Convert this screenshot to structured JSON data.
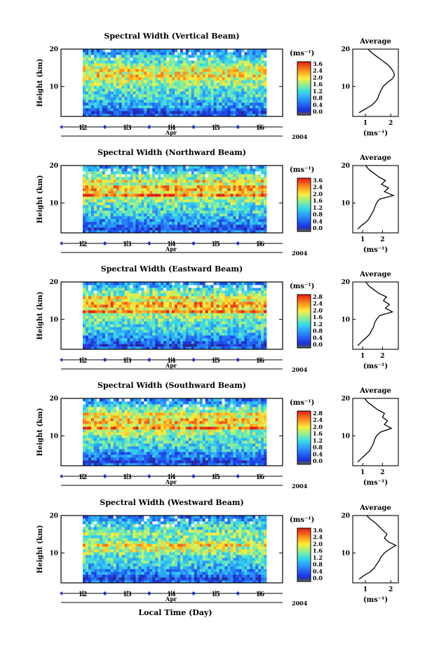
{
  "figure": {
    "xlabel": "Local Time (Day)",
    "month_label": "Apr",
    "year_label": "2004",
    "colorbar_unit": "(ms⁻¹)",
    "avg_title": "Average",
    "avg_unit": "(ms⁻¹)",
    "ylabel": "Height (km)"
  },
  "chart_data": [
    {
      "type": "heatmap",
      "title": "Spectral Width (Vertical Beam)",
      "ylabel": "Height (km)",
      "x_ticks": [
        "12",
        "13",
        "14",
        "15",
        "16"
      ],
      "y_ticks": [
        "20",
        "10"
      ],
      "ylim": [
        2,
        20
      ],
      "x_range": [
        11.9,
        16.2
      ],
      "colorbar_ticks": [
        "3.6",
        "2.4",
        "2.0",
        "1.6",
        "1.2",
        "0.8",
        "0.4",
        "0.0"
      ],
      "average": {
        "title": "Average",
        "x_ticks": [
          "1",
          "2"
        ],
        "xlim": [
          0.5,
          2.3
        ],
        "profile": [
          [
            3.0,
            0.75
          ],
          [
            4.0,
            1.0
          ],
          [
            5.0,
            1.25
          ],
          [
            6.0,
            1.4
          ],
          [
            7.0,
            1.5
          ],
          [
            8.0,
            1.55
          ],
          [
            9.0,
            1.62
          ],
          [
            10.0,
            1.7
          ],
          [
            11.0,
            1.85
          ],
          [
            12.0,
            2.05
          ],
          [
            13.0,
            2.15
          ],
          [
            14.0,
            2.1
          ],
          [
            15.0,
            2.0
          ],
          [
            16.0,
            1.85
          ],
          [
            17.0,
            1.65
          ],
          [
            18.0,
            1.45
          ],
          [
            19.0,
            1.25
          ],
          [
            20.0,
            1.1
          ]
        ]
      }
    },
    {
      "type": "heatmap",
      "title": "Spectral Width (Northward Beam)",
      "ylabel": "Height (km)",
      "x_ticks": [
        "12",
        "13",
        "14",
        "15",
        "16"
      ],
      "y_ticks": [
        "20",
        "10"
      ],
      "ylim": [
        2,
        20
      ],
      "x_range": [
        11.9,
        16.2
      ],
      "colorbar_ticks": [
        "3.6",
        "2.4",
        "2.0",
        "1.6",
        "1.2",
        "0.8",
        "0.4",
        "0.0"
      ],
      "average": {
        "title": "Average",
        "x_ticks": [
          "1",
          "2"
        ],
        "xlim": [
          0.5,
          2.8
        ],
        "profile": [
          [
            3.0,
            0.75
          ],
          [
            4.0,
            0.95
          ],
          [
            5.0,
            1.2
          ],
          [
            6.0,
            1.35
          ],
          [
            7.0,
            1.45
          ],
          [
            8.0,
            1.55
          ],
          [
            9.0,
            1.62
          ],
          [
            10.0,
            1.7
          ],
          [
            11.0,
            1.85
          ],
          [
            12.0,
            2.55
          ],
          [
            13.0,
            2.1
          ],
          [
            14.0,
            2.3
          ],
          [
            15.0,
            1.95
          ],
          [
            16.0,
            2.15
          ],
          [
            17.0,
            1.8
          ],
          [
            18.0,
            1.55
          ],
          [
            19.0,
            1.3
          ],
          [
            20.0,
            1.15
          ]
        ]
      }
    },
    {
      "type": "heatmap",
      "title": "Spectral Width (Eastward Beam)",
      "ylabel": "Height (km)",
      "x_ticks": [
        "12",
        "13",
        "14",
        "15",
        "16"
      ],
      "y_ticks": [
        "20",
        "10"
      ],
      "ylim": [
        2,
        20
      ],
      "x_range": [
        11.9,
        16.2
      ],
      "colorbar_ticks": [
        "2.8",
        "2.4",
        "2.0",
        "1.6",
        "1.2",
        "0.8",
        "0.4",
        "0.0"
      ],
      "average": {
        "title": "Average",
        "x_ticks": [
          "1",
          "2"
        ],
        "xlim": [
          0.5,
          2.8
        ],
        "profile": [
          [
            3.0,
            0.75
          ],
          [
            4.0,
            0.95
          ],
          [
            5.0,
            1.15
          ],
          [
            6.0,
            1.35
          ],
          [
            7.0,
            1.45
          ],
          [
            8.0,
            1.55
          ],
          [
            9.0,
            1.6
          ],
          [
            10.0,
            1.7
          ],
          [
            11.0,
            1.85
          ],
          [
            12.0,
            2.5
          ],
          [
            13.0,
            2.15
          ],
          [
            14.0,
            2.35
          ],
          [
            15.0,
            2.05
          ],
          [
            16.0,
            2.2
          ],
          [
            17.0,
            1.8
          ],
          [
            18.0,
            1.55
          ],
          [
            19.0,
            1.3
          ],
          [
            20.0,
            1.15
          ]
        ]
      }
    },
    {
      "type": "heatmap",
      "title": "Spectral Width (Southward Beam)",
      "ylabel": "Height (km)",
      "x_ticks": [
        "12",
        "13",
        "14",
        "15",
        "16"
      ],
      "y_ticks": [
        "20",
        "10"
      ],
      "ylim": [
        2,
        20
      ],
      "x_range": [
        11.9,
        16.2
      ],
      "colorbar_ticks": [
        "2.8",
        "2.4",
        "2.0",
        "1.6",
        "1.2",
        "0.8",
        "0.4",
        "0.0"
      ],
      "average": {
        "title": "Average",
        "x_ticks": [
          "1",
          "2"
        ],
        "xlim": [
          0.5,
          2.8
        ],
        "profile": [
          [
            3.0,
            0.75
          ],
          [
            4.0,
            0.95
          ],
          [
            5.0,
            1.15
          ],
          [
            6.0,
            1.35
          ],
          [
            7.0,
            1.45
          ],
          [
            8.0,
            1.55
          ],
          [
            9.0,
            1.6
          ],
          [
            10.0,
            1.7
          ],
          [
            11.0,
            1.9
          ],
          [
            12.0,
            2.45
          ],
          [
            13.0,
            2.1
          ],
          [
            14.0,
            2.25
          ],
          [
            15.0,
            2.0
          ],
          [
            16.0,
            2.1
          ],
          [
            17.0,
            1.75
          ],
          [
            18.0,
            1.5
          ],
          [
            19.0,
            1.25
          ],
          [
            20.0,
            1.1
          ]
        ]
      }
    },
    {
      "type": "heatmap",
      "title": "Spectral Width (Westward Beam)",
      "ylabel": "Height (km)",
      "x_ticks": [
        "12",
        "13",
        "14",
        "15",
        "16"
      ],
      "y_ticks": [
        "20",
        "10"
      ],
      "ylim": [
        2,
        20
      ],
      "x_range": [
        11.9,
        16.2
      ],
      "colorbar_ticks": [
        "3.6",
        "2.4",
        "2.0",
        "1.6",
        "1.2",
        "0.8",
        "0.4",
        "0.0"
      ],
      "average": {
        "title": "Average",
        "x_ticks": [
          "1",
          "2"
        ],
        "xlim": [
          0.5,
          2.3
        ],
        "profile": [
          [
            3.0,
            0.75
          ],
          [
            4.0,
            0.95
          ],
          [
            5.0,
            1.2
          ],
          [
            6.0,
            1.35
          ],
          [
            7.0,
            1.45
          ],
          [
            8.0,
            1.55
          ],
          [
            9.0,
            1.62
          ],
          [
            10.0,
            1.75
          ],
          [
            11.0,
            1.95
          ],
          [
            12.0,
            2.2
          ],
          [
            13.0,
            1.9
          ],
          [
            14.0,
            1.75
          ],
          [
            15.0,
            1.85
          ],
          [
            16.0,
            1.7
          ],
          [
            17.0,
            1.55
          ],
          [
            18.0,
            1.4
          ],
          [
            19.0,
            1.2
          ],
          [
            20.0,
            1.05
          ]
        ]
      }
    }
  ]
}
